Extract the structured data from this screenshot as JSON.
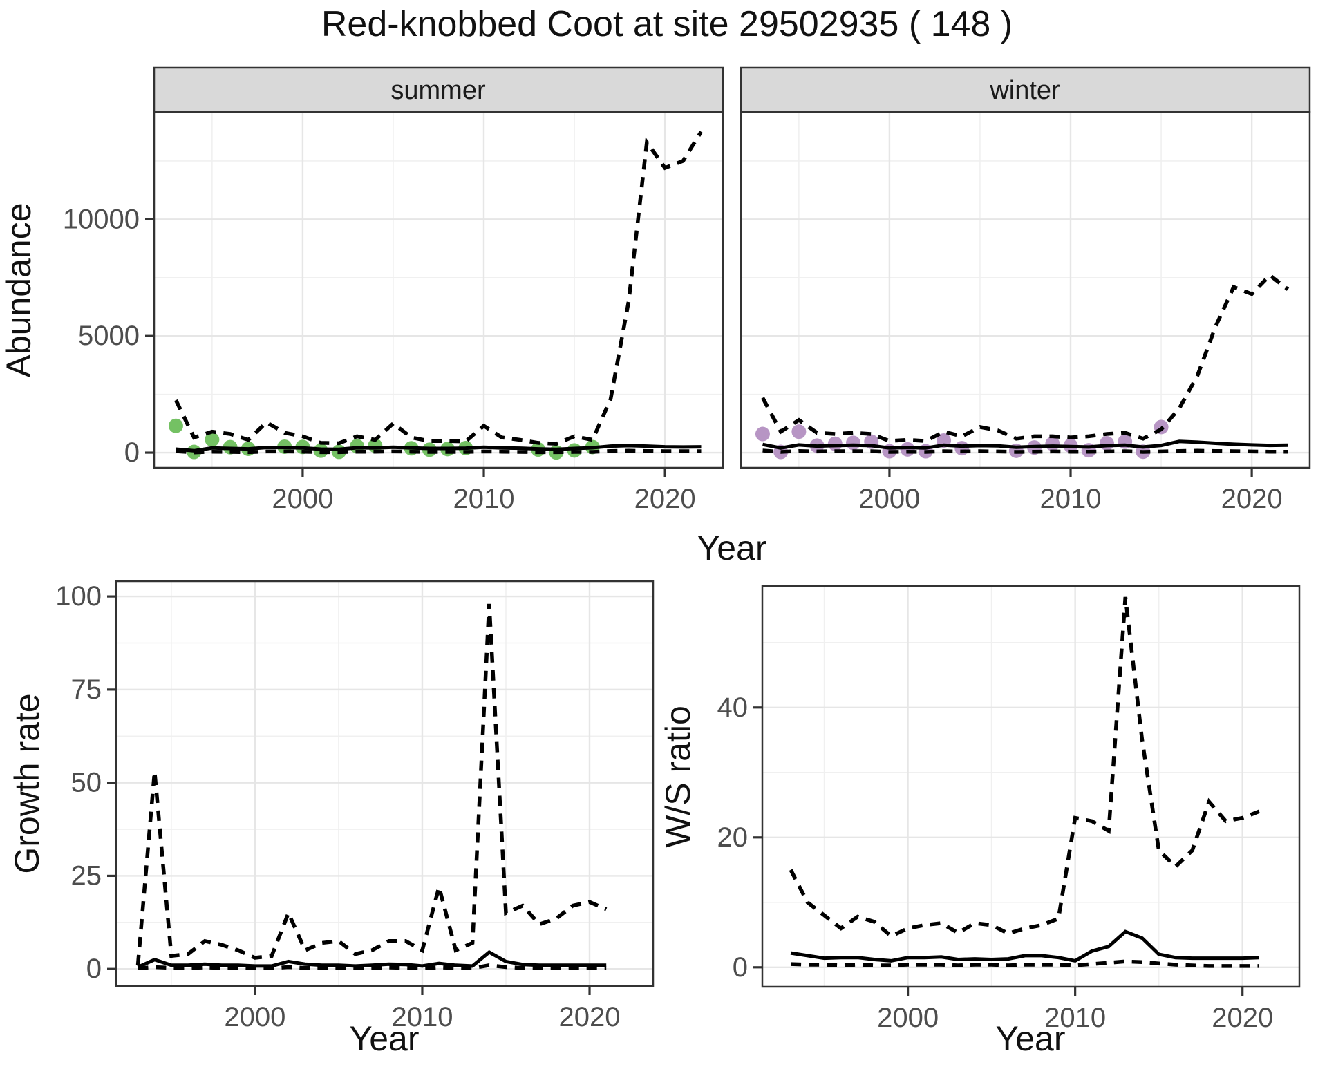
{
  "labels": {
    "title": "Red-knobbed Coot at site 29502935 ( 148 )",
    "abundance_y": "Abundance",
    "top_x": "Year",
    "growth_y": "Growth rate",
    "growth_x": "Year",
    "ws_y": "W/S ratio",
    "ws_x": "Year"
  },
  "colors": {
    "summer_point": "#74C163",
    "winter_point": "#B795C4",
    "line": "#000000",
    "strip_bg": "#D9D9D9",
    "grid_major": "#E6E6E6",
    "grid_minor": "#F0F0F0",
    "panel_border": "#333333",
    "tick_text": "#4D4D4D"
  },
  "chart_data": [
    {
      "id": "abundance_summer",
      "type": "line",
      "facet": "summer",
      "xlabel": "Year",
      "ylabel": "Abundance",
      "x_ticks": [
        2000,
        2010,
        2020
      ],
      "y_ticks": [
        0,
        5000,
        10000
      ],
      "xlim": [
        1991.8,
        2023.2
      ],
      "ylim": [
        -650,
        14600
      ],
      "x": [
        1993,
        1994,
        1995,
        1996,
        1997,
        1998,
        1999,
        2000,
        2001,
        2002,
        2003,
        2004,
        2005,
        2006,
        2007,
        2008,
        2009,
        2010,
        2011,
        2012,
        2013,
        2014,
        2015,
        2016,
        2017,
        2018,
        2019,
        2020,
        2021,
        2022
      ],
      "series": [
        {
          "name": "upper-ci-dashed",
          "style": "dashed",
          "values": [
            2250,
            650,
            900,
            800,
            550,
            1300,
            850,
            700,
            420,
            400,
            700,
            550,
            1250,
            650,
            500,
            500,
            480,
            1150,
            650,
            550,
            420,
            380,
            700,
            550,
            2300,
            6500,
            13300,
            12200,
            12500,
            13750
          ]
        },
        {
          "name": "estimate-solid",
          "style": "solid",
          "values": [
            150,
            80,
            200,
            180,
            160,
            220,
            220,
            200,
            150,
            140,
            210,
            200,
            230,
            200,
            180,
            180,
            190,
            230,
            200,
            190,
            160,
            140,
            180,
            210,
            280,
            300,
            280,
            250,
            240,
            250
          ]
        },
        {
          "name": "lower-ci-dashed",
          "style": "dashed",
          "values": [
            60,
            10,
            40,
            30,
            20,
            50,
            50,
            40,
            20,
            20,
            40,
            40,
            50,
            40,
            30,
            30,
            30,
            50,
            40,
            30,
            20,
            20,
            30,
            30,
            70,
            80,
            70,
            60,
            60,
            60
          ]
        },
        {
          "name": "observed-counts",
          "style": "points",
          "color": "#74C163",
          "points": [
            [
              1993,
              1150
            ],
            [
              1994,
              30
            ],
            [
              1995,
              560
            ],
            [
              1996,
              235
            ],
            [
              1997,
              165
            ],
            [
              1999,
              255
            ],
            [
              2000,
              245
            ],
            [
              2001,
              85
            ],
            [
              2002,
              35
            ],
            [
              2003,
              275
            ],
            [
              2004,
              300
            ],
            [
              2006,
              185
            ],
            [
              2007,
              125
            ],
            [
              2008,
              155
            ],
            [
              2009,
              195
            ],
            [
              2013,
              135
            ],
            [
              2014,
              10
            ],
            [
              2015,
              95
            ],
            [
              2016,
              240
            ]
          ]
        }
      ]
    },
    {
      "id": "abundance_winter",
      "type": "line",
      "facet": "winter",
      "xlabel": "Year",
      "ylabel": "Abundance",
      "x_ticks": [
        2000,
        2010,
        2020
      ],
      "y_ticks": [
        0,
        5000,
        10000
      ],
      "xlim": [
        1991.8,
        2023.2
      ],
      "ylim": [
        -650,
        14600
      ],
      "x": [
        1993,
        1994,
        1995,
        1996,
        1997,
        1998,
        1999,
        2000,
        2001,
        2002,
        2003,
        2004,
        2005,
        2006,
        2007,
        2008,
        2009,
        2010,
        2011,
        2012,
        2013,
        2014,
        2015,
        2016,
        2017,
        2018,
        2019,
        2020,
        2021,
        2022
      ],
      "series": [
        {
          "name": "upper-ci-dashed",
          "style": "dashed",
          "values": [
            2350,
            900,
            1400,
            850,
            800,
            850,
            800,
            500,
            550,
            500,
            900,
            700,
            1100,
            950,
            600,
            700,
            700,
            650,
            700,
            800,
            850,
            600,
            1000,
            1900,
            3300,
            5400,
            7100,
            6800,
            7600,
            7000
          ]
        },
        {
          "name": "estimate-solid",
          "style": "solid",
          "values": [
            350,
            200,
            330,
            280,
            300,
            320,
            300,
            200,
            220,
            200,
            320,
            280,
            300,
            290,
            230,
            260,
            280,
            260,
            240,
            300,
            320,
            240,
            310,
            480,
            450,
            400,
            360,
            330,
            310,
            320
          ]
        },
        {
          "name": "lower-ci-dashed",
          "style": "dashed",
          "values": [
            90,
            30,
            70,
            50,
            60,
            60,
            60,
            30,
            40,
            30,
            60,
            50,
            60,
            50,
            30,
            40,
            50,
            40,
            40,
            50,
            60,
            30,
            50,
            70,
            80,
            70,
            60,
            50,
            40,
            40
          ]
        },
        {
          "name": "observed-counts",
          "style": "points",
          "color": "#B795C4",
          "points": [
            [
              1993,
              800
            ],
            [
              1994,
              30
            ],
            [
              1995,
              900
            ],
            [
              1996,
              300
            ],
            [
              1997,
              380
            ],
            [
              1998,
              420
            ],
            [
              1999,
              470
            ],
            [
              2000,
              60
            ],
            [
              2001,
              140
            ],
            [
              2002,
              60
            ],
            [
              2003,
              520
            ],
            [
              2004,
              190
            ],
            [
              2007,
              80
            ],
            [
              2008,
              220
            ],
            [
              2009,
              380
            ],
            [
              2010,
              300
            ],
            [
              2011,
              100
            ],
            [
              2012,
              400
            ],
            [
              2013,
              470
            ],
            [
              2014,
              40
            ],
            [
              2015,
              1100
            ]
          ]
        }
      ]
    },
    {
      "id": "growth_rate",
      "type": "line",
      "facet": null,
      "xlabel": "Year",
      "ylabel": "Growth rate",
      "x_ticks": [
        2000,
        2010,
        2020
      ],
      "y_ticks": [
        0,
        25,
        50,
        75,
        100
      ],
      "xlim": [
        1991.7,
        2023.8
      ],
      "ylim": [
        -4.6,
        104.1
      ],
      "x": [
        1993,
        1994,
        1995,
        1996,
        1997,
        1998,
        1999,
        2000,
        2001,
        2002,
        2003,
        2004,
        2005,
        2006,
        2007,
        2008,
        2009,
        2010,
        2011,
        2012,
        2013,
        2014,
        2015,
        2016,
        2017,
        2018,
        2019,
        2020,
        2021
      ],
      "series": [
        {
          "name": "upper-ci-dashed",
          "style": "dashed",
          "values": [
            1,
            53,
            3.5,
            4,
            7.5,
            6.5,
            5,
            3,
            3.5,
            15,
            5,
            7,
            7.5,
            4,
            5,
            7.5,
            7.5,
            5,
            22,
            5,
            7,
            98,
            15,
            17,
            12,
            13.5,
            17,
            18,
            16
          ]
        },
        {
          "name": "estimate-solid",
          "style": "solid",
          "values": [
            0.5,
            2.5,
            1,
            1,
            1.3,
            1,
            1,
            0.8,
            0.8,
            2,
            1.3,
            1,
            1,
            0.8,
            1,
            1.3,
            1.2,
            0.8,
            1.5,
            1,
            0.8,
            4.5,
            2,
            1.2,
            1,
            1,
            1,
            1,
            1
          ]
        },
        {
          "name": "lower-ci-dashed",
          "style": "dashed",
          "values": [
            0.2,
            0.5,
            0.3,
            0.3,
            0.4,
            0.3,
            0.3,
            0.2,
            0.2,
            0.5,
            0.3,
            0.3,
            0.3,
            0.2,
            0.3,
            0.4,
            0.3,
            0.2,
            0.4,
            0.3,
            0.2,
            1,
            0.5,
            0.3,
            0.2,
            0.2,
            0.2,
            0.2,
            0.2
          ]
        }
      ]
    },
    {
      "id": "ws_ratio",
      "type": "line",
      "facet": null,
      "xlabel": "Year",
      "ylabel": "W/S ratio",
      "x_ticks": [
        2000,
        2010,
        2020
      ],
      "y_ticks": [
        0,
        20,
        40
      ],
      "xlim": [
        1991.3,
        2023.4
      ],
      "ylim": [
        -3.0,
        58.7
      ],
      "x": [
        1993,
        1994,
        1995,
        1996,
        1997,
        1998,
        1999,
        2000,
        2001,
        2002,
        2003,
        2004,
        2005,
        2006,
        2007,
        2008,
        2009,
        2010,
        2011,
        2012,
        2013,
        2014,
        2015,
        2016,
        2017,
        2018,
        2019,
        2020,
        2021
      ],
      "series": [
        {
          "name": "upper-ci-dashed",
          "style": "dashed",
          "values": [
            15,
            10,
            8,
            6,
            7.8,
            7,
            4.8,
            6,
            6.5,
            6.8,
            5.3,
            6.8,
            6.5,
            5.2,
            6,
            6.5,
            7.5,
            23,
            22.5,
            21,
            57,
            35,
            18,
            15.5,
            18,
            25.5,
            22.5,
            23,
            24
          ]
        },
        {
          "name": "estimate-solid",
          "style": "solid",
          "values": [
            2.2,
            1.8,
            1.4,
            1.5,
            1.5,
            1.2,
            1,
            1.5,
            1.5,
            1.6,
            1.2,
            1.3,
            1.2,
            1.3,
            1.8,
            1.8,
            1.5,
            1,
            2.5,
            3.2,
            5.5,
            4.5,
            2,
            1.5,
            1.4,
            1.4,
            1.4,
            1.4,
            1.5
          ]
        },
        {
          "name": "lower-ci-dashed",
          "style": "dashed",
          "values": [
            0.5,
            0.4,
            0.4,
            0.3,
            0.4,
            0.3,
            0.3,
            0.4,
            0.4,
            0.4,
            0.3,
            0.4,
            0.4,
            0.3,
            0.4,
            0.4,
            0.4,
            0.3,
            0.5,
            0.7,
            0.9,
            0.8,
            0.6,
            0.4,
            0.3,
            0.2,
            0.2,
            0.2,
            0.2
          ]
        }
      ]
    }
  ]
}
